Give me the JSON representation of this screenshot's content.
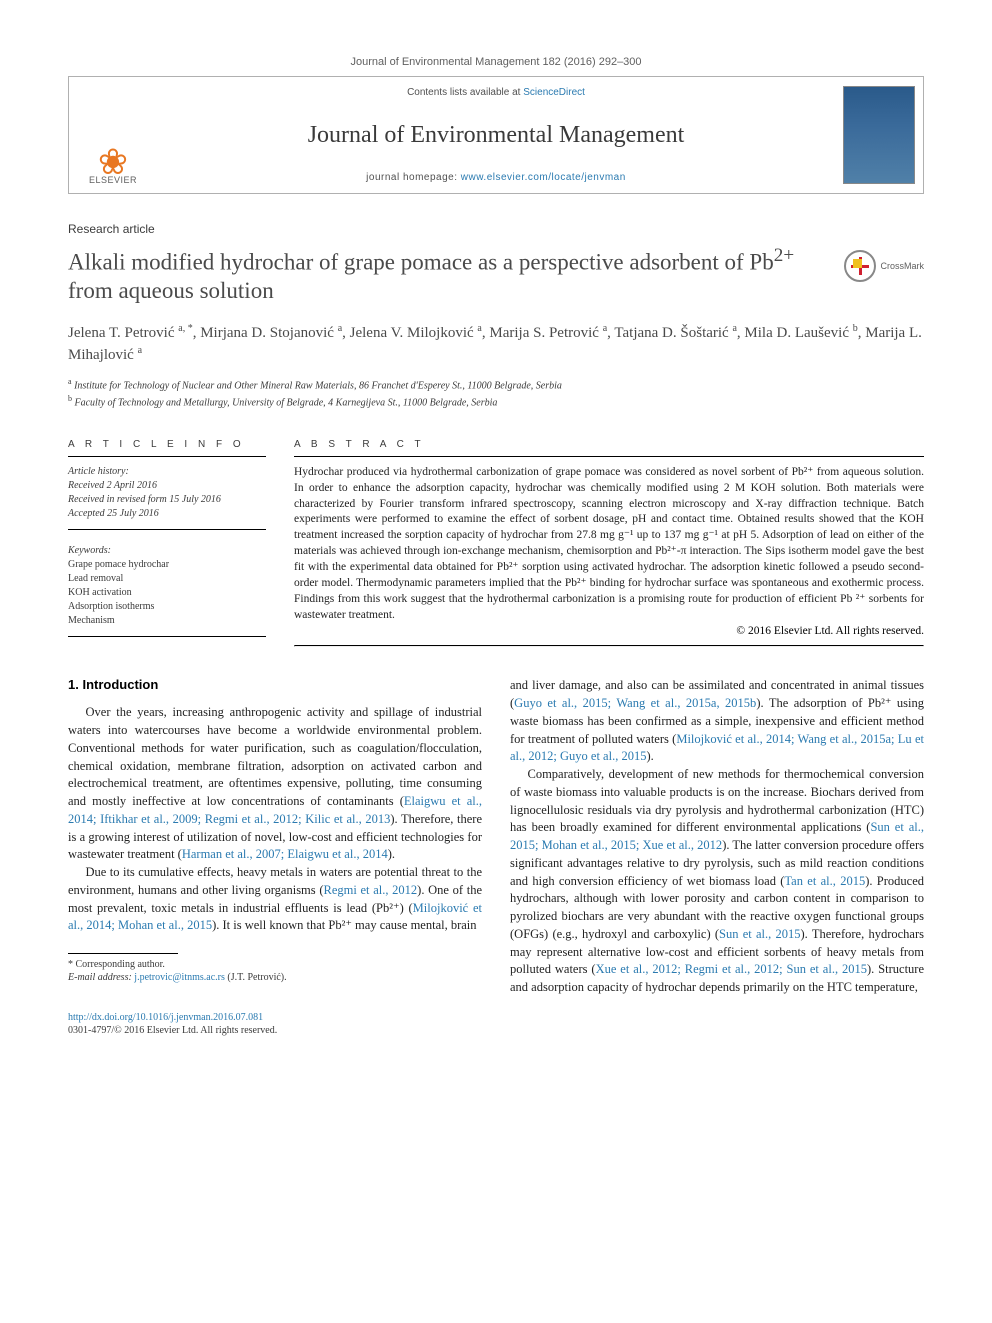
{
  "journal_ref": "Journal of Environmental Management 182 (2016) 292–300",
  "header": {
    "contents_prefix": "Contents lists available at ",
    "contents_link": "ScienceDirect",
    "journal_title": "Journal of Environmental Management",
    "homepage_prefix": "journal homepage: ",
    "homepage_link": "www.elsevier.com/locate/jenvman",
    "publisher": "ELSEVIER"
  },
  "article_type": "Research article",
  "title_part1": "Alkali modified hydrochar of grape pomace as a perspective adsorbent of Pb",
  "title_sup": "2+",
  "title_part2": " from aqueous solution",
  "crossmark": "CrossMark",
  "authors_html": "Jelena T. Petrović <sup>a, *</sup>, Mirjana D. Stojanović <sup>a</sup>, Jelena V. Milojković <sup>a</sup>, Marija S. Petrović <sup>a</sup>, Tatjana D. Šoštarić <sup>a</sup>, Mila D. Laušević <sup>b</sup>, Marija L. Mihajlović <sup>a</sup>",
  "affiliations": {
    "a": "Institute for Technology of Nuclear and Other Mineral Raw Materials, 86 Franchet d'Esperey St., 11000 Belgrade, Serbia",
    "b": "Faculty of Technology and Metallurgy, University of Belgrade, 4 Karnegijeva St., 11000 Belgrade, Serbia"
  },
  "info": {
    "heading": "A R T I C L E   I N F O",
    "history_label": "Article history:",
    "received": "Received 2 April 2016",
    "revised": "Received in revised form 15 July 2016",
    "accepted": "Accepted 25 July 2016",
    "keywords_label": "Keywords:",
    "keywords": [
      "Grape pomace hydrochar",
      "Lead removal",
      "KOH activation",
      "Adsorption isotherms",
      "Mechanism"
    ]
  },
  "abstract": {
    "heading": "A B S T R A C T",
    "text": "Hydrochar produced via hydrothermal carbonization of grape pomace was considered as novel sorbent of Pb²⁺ from aqueous solution. In order to enhance the adsorption capacity, hydrochar was chemically modified using 2 M KOH solution. Both materials were characterized by Fourier transform infrared spectroscopy, scanning electron microscopy and X-ray diffraction technique. Batch experiments were performed to examine the effect of sorbent dosage, pH and contact time. Obtained results showed that the KOH treatment increased the sorption capacity of hydrochar from 27.8 mg g⁻¹ up to 137 mg g⁻¹ at pH 5. Adsorption of lead on either of the materials was achieved through ion-exchange mechanism, chemisorption and Pb²⁺-π interaction. The Sips isotherm model gave the best fit with the experimental data obtained for Pb²⁺ sorption using activated hydrochar. The adsorption kinetic followed a pseudo second-order model. Thermodynamic parameters implied that the Pb²⁺ binding for hydrochar surface was spontaneous and exothermic process. Findings from this work suggest that the hydrothermal carbonization is a promising route for production of efficient Pb ²⁺ sorbents for wastewater treatment.",
    "copyright": "© 2016 Elsevier Ltd. All rights reserved."
  },
  "body": {
    "intro_heading": "1. Introduction",
    "left_paragraphs_html": [
      "Over the years, increasing anthropogenic activity and spillage of industrial waters into watercourses have become a worldwide environmental problem. Conventional methods for water purification, such as coagulation/flocculation, chemical oxidation, membrane filtration, adsorption on activated carbon and electrochemical treatment, are oftentimes expensive, polluting, time consuming and mostly ineffective at low concentrations of contaminants (<a>Elaigwu et al., 2014; Iftikhar et al., 2009; Regmi et al., 2012; Kilic et al., 2013</a>). Therefore, there is a growing interest of utilization of novel, low-cost and efficient technologies for wastewater treatment (<a>Harman et al., 2007; Elaigwu et al., 2014</a>).",
      "Due to its cumulative effects, heavy metals in waters are potential threat to the environment, humans and other living organisms (<a>Regmi et al., 2012</a>). One of the most prevalent, toxic metals in industrial effluents is lead (Pb²⁺) (<a>Milojković et al., 2014; Mohan et al., 2015</a>). It is well known that Pb²⁺ may cause mental, brain"
    ],
    "right_paragraphs_html": [
      "and liver damage, and also can be assimilated and concentrated in animal tissues (<a>Guyo et al., 2015; Wang et al., 2015a, 2015b</a>). The adsorption of Pb²⁺ using waste biomass has been confirmed as a simple, inexpensive and efficient method for treatment of polluted waters (<a>Milojković et al., 2014; Wang et al., 2015a; Lu et al., 2012; Guyo et al., 2015</a>).",
      "Comparatively, development of new methods for thermochemical conversion of waste biomass into valuable products is on the increase. Biochars derived from lignocellulosic residuals via dry pyrolysis and hydrothermal carbonization (HTC) has been broadly examined for different environmental applications (<a>Sun et al., 2015; Mohan et al., 2015; Xue et al., 2012</a>). The latter conversion procedure offers significant advantages relative to dry pyrolysis, such as mild reaction conditions and high conversion efficiency of wet biomass load (<a>Tan et al., 2015</a>). Produced hydrochars, although with lower porosity and carbon content in comparison to pyrolized biochars are very abundant with the reactive oxygen functional groups (OFGs) (e.g., hydroxyl and carboxylic) (<a>Sun et al., 2015</a>). Therefore, hydrochars may represent alternative low-cost and efficient sorbents of heavy metals from polluted waters (<a>Xue et al., 2012; Regmi et al., 2012; Sun et al., 2015</a>). Structure and adsorption capacity of hydrochar depends primarily on the HTC temperature,"
    ]
  },
  "footnote": {
    "corr": "* Corresponding author.",
    "email_label": "E-mail address: ",
    "email": "j.petrovic@itnms.ac.rs",
    "email_who": " (J.T. Petrović)."
  },
  "footer": {
    "doi": "http://dx.doi.org/10.1016/j.jenvman.2016.07.081",
    "issn_copyright": "0301-4797/© 2016 Elsevier Ltd. All rights reserved."
  },
  "colors": {
    "link": "#2a7ab0",
    "accent": "#e87722",
    "text": "#222222",
    "muted": "#606060",
    "rule": "#000000"
  }
}
